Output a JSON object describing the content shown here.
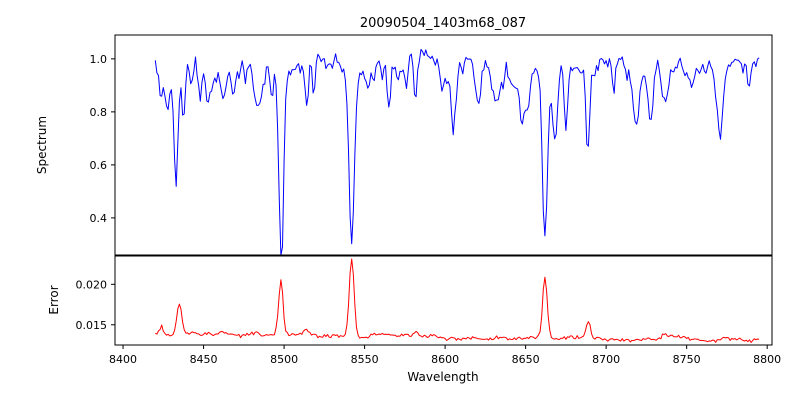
{
  "chart_data": {
    "type": "line",
    "title": "20090504_1403m68_087",
    "xlabel": "Wavelength",
    "xlim": [
      8395,
      8803
    ],
    "background": "#ffffff",
    "axis_color": "#000000",
    "seed": 7,
    "x_ticks": [
      {
        "value": 8400,
        "label": "8400"
      },
      {
        "value": 8450,
        "label": "8450"
      },
      {
        "value": 8500,
        "label": "8500"
      },
      {
        "value": 8550,
        "label": "8550"
      },
      {
        "value": 8600,
        "label": "8600"
      },
      {
        "value": 8650,
        "label": "8650"
      },
      {
        "value": 8700,
        "label": "8700"
      },
      {
        "value": 8750,
        "label": "8750"
      },
      {
        "value": 8800,
        "label": "8800"
      }
    ],
    "subplots": [
      {
        "name": "spectrum",
        "ylabel": "Spectrum",
        "color": "#0000ff",
        "ylim": [
          0.26,
          1.09
        ],
        "y_ticks": [
          {
            "value": 1.0,
            "label": "1.0"
          },
          {
            "value": 0.8,
            "label": "0.8"
          },
          {
            "value": 0.6,
            "label": "0.6"
          },
          {
            "value": 0.4,
            "label": "0.4"
          }
        ],
        "x_start": 8420,
        "x_end": 8795,
        "x_step": 1,
        "continuum": 0.995,
        "noise_amplitude": 0.03,
        "micro_line_count": 70,
        "absorption_lines": [
          {
            "center": 8424.0,
            "depth": 0.1,
            "width": 1.0
          },
          {
            "center": 8433.0,
            "depth": 0.43,
            "width": 1.3
          },
          {
            "center": 8437.5,
            "depth": 0.22,
            "width": 1.0
          },
          {
            "center": 8447.0,
            "depth": 0.1,
            "width": 1.0
          },
          {
            "center": 8468.0,
            "depth": 0.13,
            "width": 1.1
          },
          {
            "center": 8476.0,
            "depth": 0.08,
            "width": 0.9
          },
          {
            "center": 8498.0,
            "depth": 0.55,
            "width": 1.4
          },
          {
            "center": 8514.0,
            "depth": 0.16,
            "width": 1.0
          },
          {
            "center": 8518.5,
            "depth": 0.14,
            "width": 0.9
          },
          {
            "center": 8542.0,
            "depth": 0.7,
            "width": 1.7
          },
          {
            "center": 8556.0,
            "depth": 0.07,
            "width": 0.9
          },
          {
            "center": 8582.0,
            "depth": 0.1,
            "width": 1.0
          },
          {
            "center": 8598.0,
            "depth": 0.07,
            "width": 0.9
          },
          {
            "center": 8611.0,
            "depth": 0.06,
            "width": 0.9
          },
          {
            "center": 8621.0,
            "depth": 0.09,
            "width": 1.0
          },
          {
            "center": 8648.0,
            "depth": 0.09,
            "width": 1.0
          },
          {
            "center": 8662.0,
            "depth": 0.68,
            "width": 1.6
          },
          {
            "center": 8675.0,
            "depth": 0.26,
            "width": 1.1
          },
          {
            "center": 8688.5,
            "depth": 0.33,
            "width": 1.2
          },
          {
            "center": 8713.0,
            "depth": 0.07,
            "width": 0.9
          },
          {
            "center": 8736.0,
            "depth": 0.1,
            "width": 1.0
          },
          {
            "center": 8768.0,
            "depth": 0.08,
            "width": 0.9
          }
        ]
      },
      {
        "name": "error",
        "ylabel": "Error",
        "color": "#ff0000",
        "ylim": [
          0.0125,
          0.0235
        ],
        "y_ticks": [
          {
            "value": 0.02,
            "label": "0.020"
          },
          {
            "value": 0.015,
            "label": "0.015"
          }
        ],
        "x_start": 8420,
        "x_end": 8795,
        "x_step": 1,
        "baseline": 0.0138,
        "baseline_slope": -1.8e-06,
        "noise_amplitude": 0.0004,
        "peaks": [
          {
            "center": 8424.0,
            "amplitude": 0.001,
            "width": 1.2
          },
          {
            "center": 8435.0,
            "amplitude": 0.0036,
            "width": 1.5
          },
          {
            "center": 8498.0,
            "amplitude": 0.0068,
            "width": 1.3
          },
          {
            "center": 8514.0,
            "amplitude": 0.0008,
            "width": 1.1
          },
          {
            "center": 8542.0,
            "amplitude": 0.0097,
            "width": 1.5
          },
          {
            "center": 8582.0,
            "amplitude": 0.0007,
            "width": 1.1
          },
          {
            "center": 8662.0,
            "amplitude": 0.0077,
            "width": 1.4
          },
          {
            "center": 8689.0,
            "amplitude": 0.002,
            "width": 1.3
          },
          {
            "center": 8736.0,
            "amplitude": 0.0006,
            "width": 1.1
          }
        ]
      }
    ]
  }
}
